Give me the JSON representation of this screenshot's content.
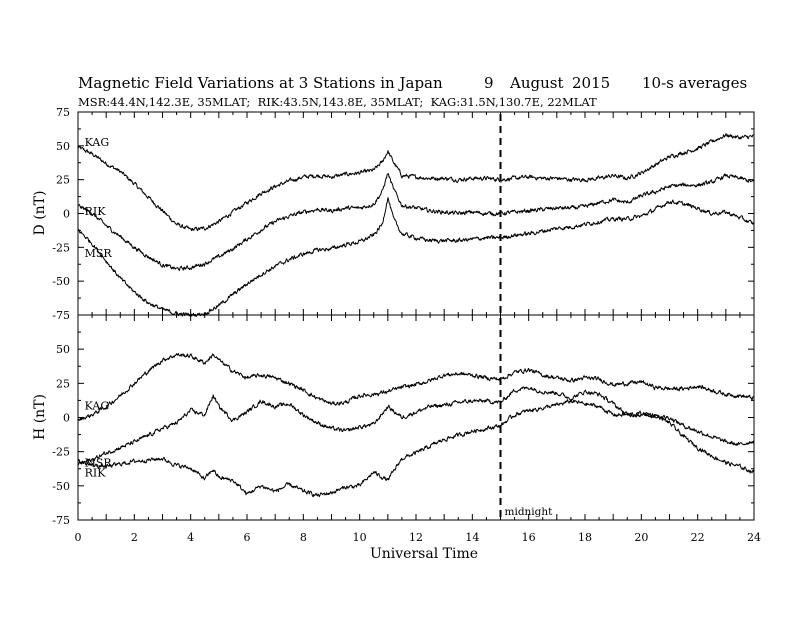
{
  "header": {
    "title": "Magnetic Field Variations at 3 Stations in Japan",
    "date_day": "9",
    "date_month": "August",
    "date_year": "2015",
    "averaging": "10-s averages",
    "stations_line": "MSR:44.4N,142.3E, 35MLAT;  RIK:43.5N,143.8E, 35MLAT;  KAG:31.5N,130.7E, 22MLAT"
  },
  "x_axis": {
    "title": "Universal Time",
    "range": [
      0,
      24
    ],
    "ticks": [
      "0",
      "2",
      "4",
      "6",
      "8",
      "10",
      "12",
      "14",
      "16",
      "18",
      "20",
      "22",
      "24"
    ]
  },
  "annotation": {
    "midnight_label": "midnight",
    "midnight_time": 15
  },
  "chart_data": [
    {
      "type": "line",
      "panel": "D",
      "ylabel": "D (nT)",
      "ylim": [
        -75,
        75
      ],
      "yticks": [
        "75",
        "50",
        "25",
        "0",
        "-25",
        "-50",
        "-75"
      ],
      "grid": false,
      "series": [
        {
          "name": "KAG",
          "x": [
            0,
            0.5,
            1,
            1.5,
            2,
            2.5,
            3,
            3.5,
            4,
            4.5,
            5,
            5.5,
            6,
            6.5,
            7,
            7.5,
            8,
            8.5,
            9,
            9.5,
            10,
            10.5,
            10.8,
            11,
            11.2,
            11.5,
            12,
            12.5,
            13,
            13.5,
            14,
            14.5,
            15,
            15.5,
            16,
            16.5,
            17,
            17.5,
            18,
            18.5,
            19,
            19.5,
            20,
            20.5,
            21,
            21.5,
            22,
            22.5,
            23,
            23.5,
            24
          ],
          "y": [
            49,
            44,
            37,
            31,
            22,
            12,
            2,
            -8,
            -12,
            -11,
            -6,
            1,
            8,
            15,
            20,
            24,
            27,
            28,
            27,
            29,
            30,
            32,
            38,
            46,
            38,
            28,
            27,
            26,
            26,
            25,
            26,
            26,
            25,
            26,
            27,
            26,
            26,
            25,
            25,
            26,
            28,
            26,
            30,
            36,
            42,
            45,
            48,
            53,
            58,
            56,
            57
          ]
        },
        {
          "name": "RIK",
          "x": [
            0,
            0.5,
            1,
            1.5,
            2,
            2.5,
            3,
            3.5,
            4,
            4.5,
            5,
            5.5,
            6,
            6.5,
            7,
            7.5,
            8,
            8.5,
            9,
            9.5,
            10,
            10.5,
            10.8,
            11,
            11.2,
            11.5,
            12,
            12.5,
            13,
            13.5,
            14,
            14.5,
            15,
            15.5,
            16,
            16.5,
            17,
            17.5,
            18,
            18.5,
            19,
            19.5,
            20,
            20.5,
            21,
            21.5,
            22,
            22.5,
            23,
            23.5,
            24
          ],
          "y": [
            6,
            0,
            -9,
            -17,
            -25,
            -32,
            -38,
            -41,
            -40,
            -37,
            -32,
            -26,
            -19,
            -12,
            -6,
            -2,
            1,
            3,
            2,
            4,
            4,
            7,
            16,
            30,
            18,
            6,
            4,
            2,
            1,
            0,
            1,
            0,
            0,
            1,
            2,
            3,
            4,
            4,
            5,
            8,
            10,
            8,
            13,
            16,
            20,
            21,
            21,
            23,
            28,
            26,
            23
          ]
        },
        {
          "name": "MSR",
          "x": [
            0,
            0.5,
            1,
            1.5,
            2,
            2.5,
            3,
            3.5,
            4,
            4.5,
            5,
            5.5,
            6,
            6.5,
            7,
            7.5,
            8,
            8.5,
            9,
            9.5,
            10,
            10.5,
            10.8,
            11,
            11.2,
            11.5,
            12,
            12.5,
            13,
            13.5,
            14,
            14.5,
            15,
            15.5,
            16,
            16.5,
            17,
            17.5,
            18,
            18.5,
            19,
            19.5,
            20,
            20.5,
            21,
            21.5,
            22,
            22.5,
            23,
            23.5,
            24
          ],
          "y": [
            -12,
            -22,
            -35,
            -48,
            -58,
            -66,
            -71,
            -74,
            -75,
            -74,
            -68,
            -60,
            -52,
            -45,
            -39,
            -34,
            -30,
            -27,
            -26,
            -23,
            -21,
            -16,
            -8,
            12,
            -4,
            -15,
            -18,
            -20,
            -20,
            -20,
            -19,
            -18,
            -18,
            -16,
            -15,
            -13,
            -11,
            -10,
            -8,
            -6,
            -4,
            -4,
            -2,
            3,
            9,
            7,
            4,
            0,
            1,
            -3,
            -8
          ]
        }
      ]
    },
    {
      "type": "line",
      "panel": "H",
      "ylabel": "H (nT)",
      "ylim": [
        -75,
        75
      ],
      "yticks": [
        "75",
        "50",
        "25",
        "0",
        "-25",
        "-50",
        "-75"
      ],
      "grid": false,
      "series": [
        {
          "name": "KAG",
          "x": [
            0,
            0.5,
            1,
            1.5,
            2,
            2.5,
            3,
            3.5,
            4,
            4.5,
            4.8,
            5,
            5.5,
            6,
            6.5,
            7,
            7.5,
            8,
            8.5,
            9,
            9.5,
            10,
            10.5,
            11,
            11.5,
            12,
            12.5,
            13,
            13.5,
            14,
            14.5,
            15,
            15.5,
            16,
            16.5,
            17,
            17.5,
            18,
            18.5,
            19,
            19.5,
            20,
            20.5,
            21,
            21.5,
            22,
            22.5,
            23,
            23.5,
            24
          ],
          "y": [
            -2,
            2,
            8,
            16,
            25,
            34,
            42,
            46,
            45,
            40,
            46,
            42,
            34,
            29,
            31,
            29,
            25,
            20,
            14,
            10,
            11,
            16,
            17,
            19,
            22,
            24,
            27,
            31,
            32,
            31,
            29,
            28,
            33,
            35,
            31,
            29,
            27,
            29,
            28,
            24,
            25,
            26,
            22,
            21,
            21,
            23,
            20,
            17,
            16,
            14
          ]
        },
        {
          "name": "RIK",
          "x": [
            0,
            0.5,
            1,
            1.5,
            2,
            2.5,
            3,
            3.5,
            4,
            4.5,
            4.8,
            5,
            5.5,
            6,
            6.5,
            7,
            7.5,
            8,
            8.5,
            9,
            9.5,
            10,
            10.5,
            11,
            11.5,
            12,
            12.5,
            13,
            13.5,
            14,
            14.5,
            15,
            15.5,
            16,
            16.5,
            17,
            17.5,
            18,
            18.5,
            19,
            19.5,
            20,
            20.5,
            21,
            21.5,
            22,
            22.5,
            23,
            23.5,
            24
          ],
          "y": [
            -34,
            -31,
            -26,
            -22,
            -18,
            -13,
            -8,
            -4,
            5,
            2,
            16,
            8,
            -2,
            4,
            12,
            8,
            10,
            2,
            -4,
            -8,
            -10,
            -7,
            -5,
            8,
            0,
            4,
            8,
            9,
            11,
            12,
            12,
            11,
            20,
            22,
            19,
            18,
            14,
            19,
            17,
            10,
            2,
            2,
            1,
            0,
            -6,
            -10,
            -14,
            -18,
            -20,
            -17
          ]
        },
        {
          "name": "MSR",
          "x": [
            0,
            0.5,
            1,
            1.5,
            2,
            2.5,
            3,
            3.5,
            4,
            4.5,
            4.8,
            5,
            5.5,
            6,
            6.5,
            7,
            7.5,
            8,
            8.5,
            9,
            9.5,
            10,
            10.5,
            11,
            11.5,
            12,
            12.5,
            13,
            13.5,
            14,
            14.5,
            15,
            15.5,
            16,
            16.5,
            17,
            17.5,
            18,
            18.5,
            19,
            19.5,
            20,
            20.5,
            21,
            21.5,
            22,
            22.5,
            23,
            23.5,
            24
          ],
          "y": [
            -32,
            -35,
            -36,
            -34,
            -32,
            -31,
            -30,
            -35,
            -37,
            -45,
            -38,
            -44,
            -46,
            -56,
            -50,
            -54,
            -49,
            -54,
            -57,
            -55,
            -51,
            -50,
            -40,
            -46,
            -30,
            -26,
            -21,
            -16,
            -13,
            -10,
            -8,
            -6,
            2,
            5,
            7,
            9,
            12,
            10,
            8,
            2,
            2,
            3,
            2,
            -4,
            -14,
            -22,
            -28,
            -33,
            -36,
            -40
          ]
        }
      ]
    }
  ],
  "panel_station_labels": [
    {
      "panel": "D",
      "text": "KAG",
      "ref_time": 0.2,
      "ref_value": 50
    },
    {
      "panel": "D",
      "text": "RIK",
      "ref_time": 0.2,
      "ref_value": -1
    },
    {
      "panel": "D",
      "text": "MSR",
      "ref_time": 0.2,
      "ref_value": -32
    },
    {
      "panel": "H",
      "text": "KAG",
      "ref_time": 0.2,
      "ref_value": 6
    },
    {
      "panel": "H",
      "text": "MSR",
      "ref_time": 0.2,
      "ref_value": -36
    },
    {
      "panel": "H",
      "text": "RIK",
      "ref_time": 0.2,
      "ref_value": -43
    }
  ]
}
